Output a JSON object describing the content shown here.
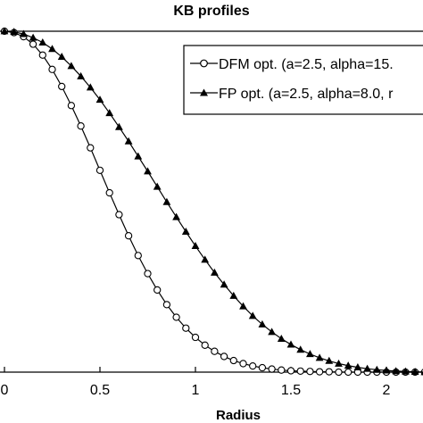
{
  "chart_data": {
    "type": "line",
    "title": "KB profiles",
    "xlabel": "Radius",
    "ylabel": "",
    "xlim": [
      0,
      2.2
    ],
    "ylim": [
      0,
      1
    ],
    "grid": false,
    "legend_position": "top-right",
    "xtick_labels": [
      "0",
      "0.5",
      "1",
      "1.5",
      "2"
    ],
    "xtick_values": [
      0,
      0.5,
      1,
      1.5,
      2
    ],
    "series": [
      {
        "name": "DFM opt. (a=2.5, alpha=15.",
        "marker": "open-circle",
        "color": "#000000",
        "x": [
          0,
          0.05,
          0.1,
          0.15,
          0.2,
          0.25,
          0.3,
          0.35,
          0.4,
          0.45,
          0.5,
          0.55,
          0.6,
          0.65,
          0.7,
          0.75,
          0.8,
          0.85,
          0.9,
          0.95,
          1.0,
          1.05,
          1.1,
          1.15,
          1.2,
          1.25,
          1.3,
          1.35,
          1.4,
          1.45,
          1.5,
          1.55,
          1.6,
          1.65,
          1.7,
          1.75,
          1.8,
          1.85,
          1.9,
          1.95,
          2.0,
          2.05,
          2.1,
          2.15,
          2.2
        ],
        "y": [
          1.0,
          0.996,
          0.984,
          0.962,
          0.93,
          0.888,
          0.838,
          0.782,
          0.722,
          0.658,
          0.592,
          0.526,
          0.462,
          0.4,
          0.342,
          0.289,
          0.241,
          0.198,
          0.161,
          0.129,
          0.102,
          0.079,
          0.061,
          0.046,
          0.034,
          0.025,
          0.018,
          0.013,
          0.009,
          0.006,
          0.004,
          0.003,
          0.002,
          0.001,
          0.001,
          0.0,
          0.0,
          0.0,
          0.0,
          0.0,
          0.0,
          0.0,
          0.0,
          0.0,
          0.0
        ]
      },
      {
        "name": "FP opt. (a=2.5, alpha=8.0, r",
        "marker": "filled-triangle",
        "color": "#000000",
        "x": [
          0,
          0.05,
          0.1,
          0.15,
          0.2,
          0.25,
          0.3,
          0.35,
          0.4,
          0.45,
          0.5,
          0.55,
          0.6,
          0.65,
          0.7,
          0.75,
          0.8,
          0.85,
          0.9,
          0.95,
          1.0,
          1.05,
          1.1,
          1.15,
          1.2,
          1.25,
          1.3,
          1.35,
          1.4,
          1.45,
          1.5,
          1.55,
          1.6,
          1.65,
          1.7,
          1.75,
          1.8,
          1.85,
          1.9,
          1.95,
          2.0,
          2.05,
          2.1,
          2.15,
          2.2
        ],
        "y": [
          1.0,
          0.998,
          0.992,
          0.981,
          0.967,
          0.948,
          0.925,
          0.898,
          0.868,
          0.835,
          0.799,
          0.76,
          0.719,
          0.677,
          0.633,
          0.589,
          0.544,
          0.499,
          0.455,
          0.412,
          0.37,
          0.33,
          0.292,
          0.257,
          0.224,
          0.193,
          0.165,
          0.14,
          0.118,
          0.098,
          0.081,
          0.066,
          0.053,
          0.042,
          0.033,
          0.025,
          0.019,
          0.014,
          0.01,
          0.007,
          0.005,
          0.003,
          0.002,
          0.001,
          0.0
        ]
      }
    ]
  }
}
